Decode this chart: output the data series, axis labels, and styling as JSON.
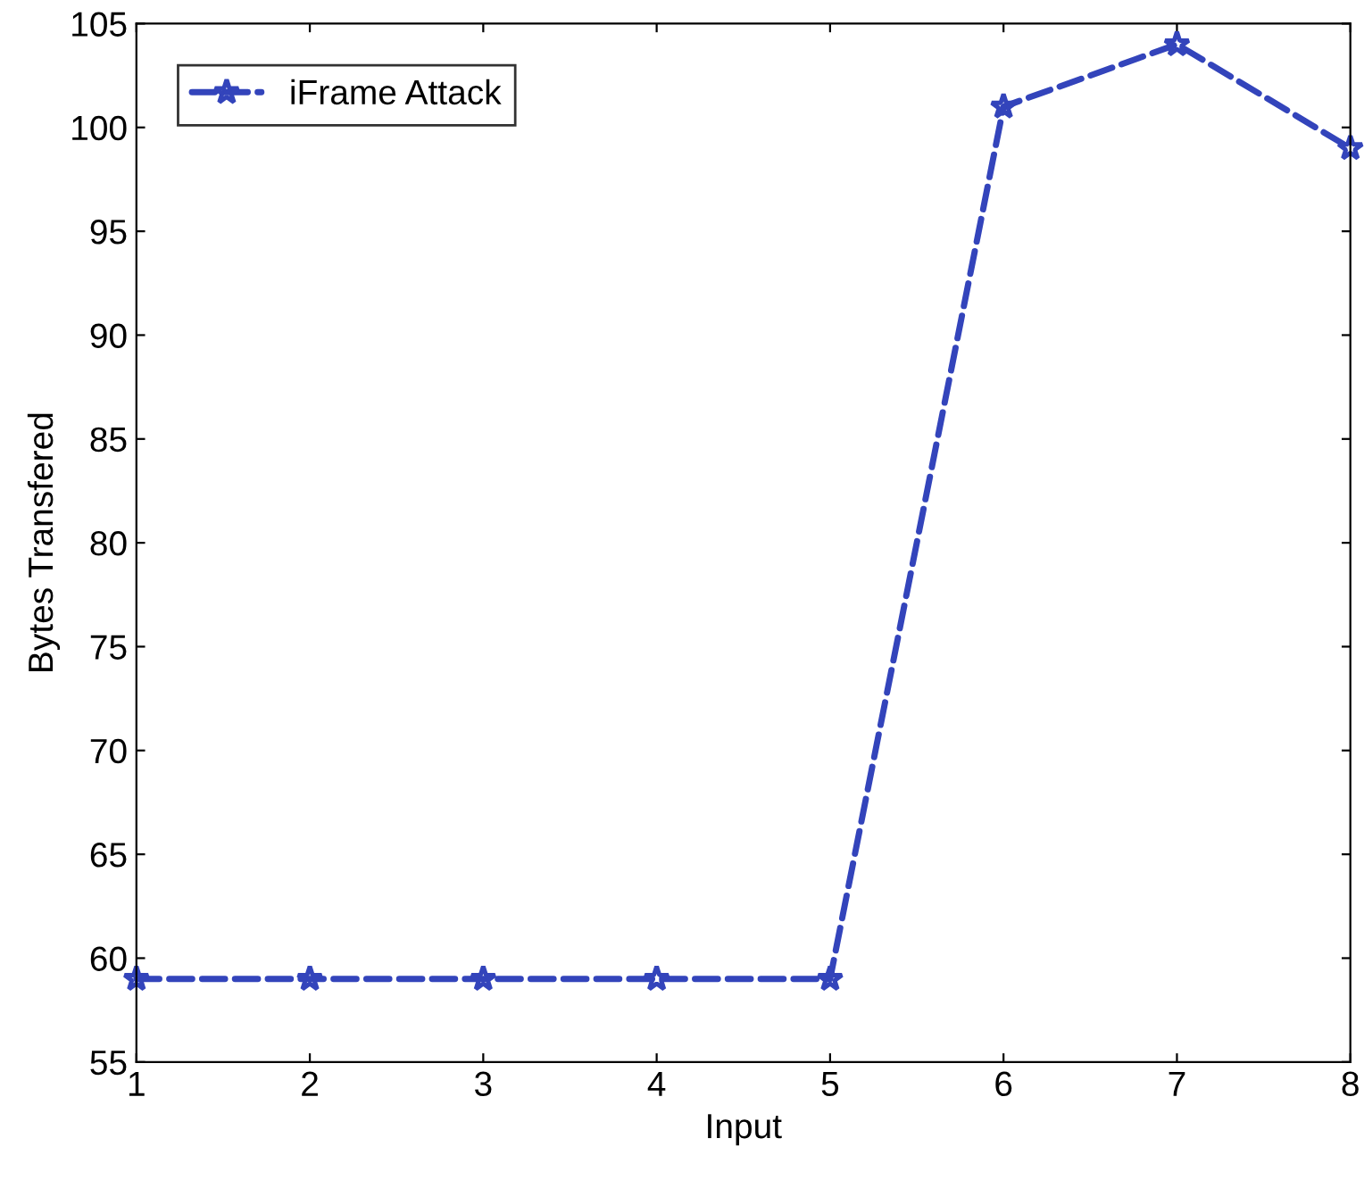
{
  "chart_data": {
    "type": "line",
    "xlabel": "Input",
    "ylabel": "Bytes Transfered",
    "x": [
      1,
      2,
      3,
      4,
      5,
      6,
      7,
      8
    ],
    "series": [
      {
        "name": "iFrame Attack",
        "color": "#3344bb",
        "values": [
          59,
          59,
          59,
          59,
          59,
          101,
          104,
          99
        ]
      }
    ],
    "xlim": [
      1,
      8
    ],
    "xticks": [
      1,
      2,
      3,
      4,
      5,
      6,
      7,
      8
    ],
    "ylim": [
      55,
      105
    ],
    "yticks": [
      55,
      60,
      65,
      70,
      75,
      80,
      85,
      90,
      95,
      100,
      105
    ],
    "marker": "star",
    "line_style": "dashed",
    "legend": "top left",
    "grid": false
  }
}
